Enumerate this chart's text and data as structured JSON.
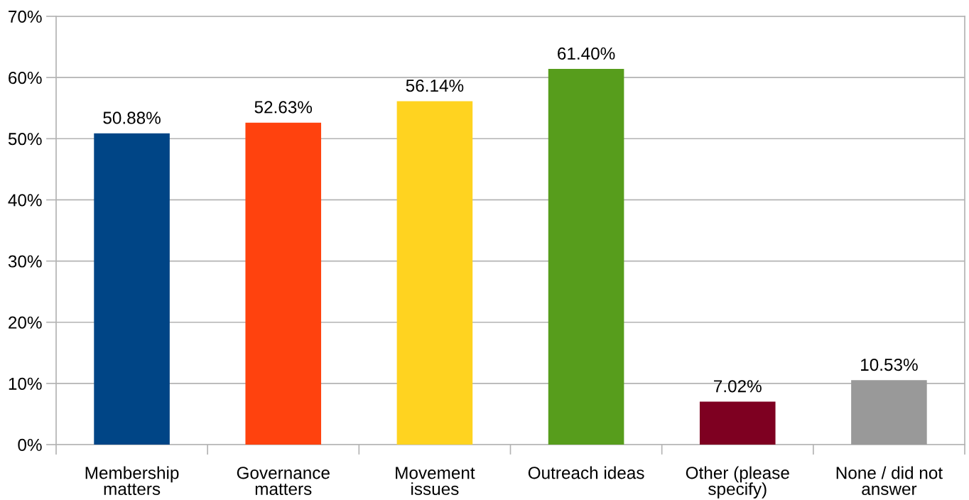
{
  "chart_data": {
    "type": "bar",
    "categories": [
      "Membership\nmatters",
      "Governance\nmatters",
      "Movement\nissues",
      "Outreach ideas",
      "Other (please\nspecify)",
      "None / did not\nanswer"
    ],
    "values": [
      50.88,
      52.63,
      56.14,
      61.4,
      7.02,
      10.53
    ],
    "colors": [
      "#004586",
      "#ff420e",
      "#ffd320",
      "#579d1c",
      "#7e0021",
      "#999999"
    ],
    "value_labels": [
      "50.88%",
      "52.63%",
      "56.14%",
      "61.40%",
      "7.02%",
      "10.53%"
    ],
    "ylim": [
      0,
      70
    ],
    "yticks": [
      {
        "value": 0,
        "label": "0%"
      },
      {
        "value": 10,
        "label": "10%"
      },
      {
        "value": 20,
        "label": "20%"
      },
      {
        "value": 30,
        "label": "30%"
      },
      {
        "value": 40,
        "label": "40%"
      },
      {
        "value": 50,
        "label": "50%"
      },
      {
        "value": 60,
        "label": "60%"
      },
      {
        "value": 70,
        "label": "70%"
      }
    ],
    "grid": "y",
    "legend": false
  }
}
